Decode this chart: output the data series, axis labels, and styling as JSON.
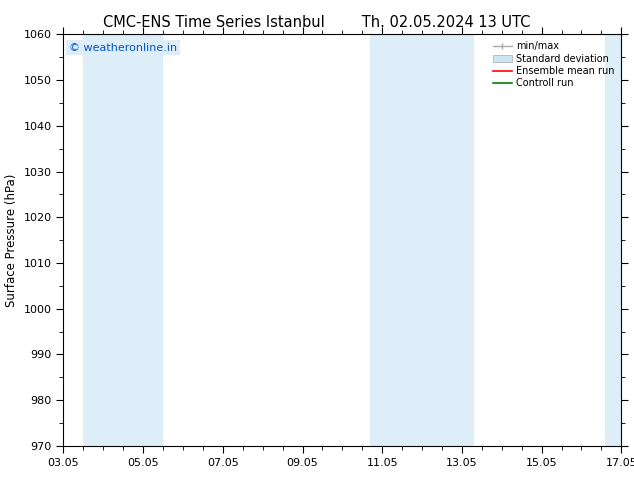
{
  "title_left": "CMC-ENS Time Series Istanbul",
  "title_right": "Th. 02.05.2024 13 UTC",
  "ylabel": "Surface Pressure (hPa)",
  "ylim": [
    970,
    1060
  ],
  "yticks": [
    970,
    980,
    990,
    1000,
    1010,
    1020,
    1030,
    1040,
    1050,
    1060
  ],
  "xlim_start": 0,
  "xlim_end": 14,
  "xtick_labels": [
    "03.05",
    "05.05",
    "07.05",
    "09.05",
    "11.05",
    "13.05",
    "15.05",
    "17.05"
  ],
  "xtick_positions": [
    0,
    2,
    4,
    6,
    8,
    10,
    12,
    14
  ],
  "background_color": "#ffffff",
  "plot_bg_color": "#ffffff",
  "watermark_text": "© weatheronline.in",
  "watermark_color": "#0055cc",
  "legend_labels": [
    "min/max",
    "Standard deviation",
    "Ensemble mean run",
    "Controll run"
  ],
  "shaded_bands": [
    {
      "x_start": 0.5,
      "x_end": 2.5,
      "color": "#ddeef8"
    },
    {
      "x_start": 7.7,
      "x_end": 10.3,
      "color": "#ddeef8"
    },
    {
      "x_start": 13.6,
      "x_end": 14.0,
      "color": "#ddeef8"
    }
  ],
  "title_fontsize": 10.5,
  "axis_label_fontsize": 8.5,
  "tick_fontsize": 8
}
